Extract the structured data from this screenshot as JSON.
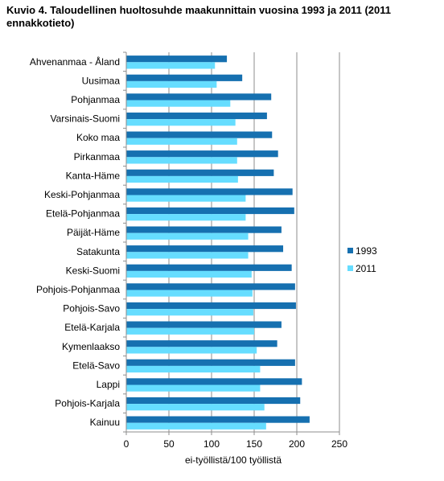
{
  "chart_data": {
    "type": "bar",
    "orientation": "horizontal",
    "title": "Kuvio 4. Taloudellinen huoltosuhde maakunnittain vuosina 1993 ja 2011 (2011 ennakkotieto)",
    "xlabel": "ei-työllistä/100 työllistä",
    "ylabel": "",
    "xlim": [
      0,
      250
    ],
    "xticks": [
      0,
      50,
      100,
      150,
      200,
      250
    ],
    "grid": true,
    "legend_position": "right",
    "categories": [
      "Ahvenanmaa - Åland",
      "Uusimaa",
      "Pohjanmaa",
      "Varsinais-Suomi",
      "Koko maa",
      "Pirkanmaa",
      "Kanta-Häme",
      "Keski-Pohjanmaa",
      "Etelä-Pohjanmaa",
      "Päijät-Häme",
      "Satakunta",
      "Keski-Suomi",
      "Pohjois-Pohjanmaa",
      "Pohjois-Savo",
      "Etelä-Karjala",
      "Kymenlaakso",
      "Etelä-Savo",
      "Lappi",
      "Pohjois-Karjala",
      "Kainuu"
    ],
    "series": [
      {
        "name": "1993",
        "color": "#1670b0",
        "values": [
          118,
          136,
          170,
          165,
          171,
          178,
          173,
          195,
          197,
          182,
          184,
          194,
          198,
          199,
          182,
          177,
          198,
          206,
          204,
          215
        ]
      },
      {
        "name": "2011",
        "color": "#66ddff",
        "values": [
          104,
          106,
          122,
          128,
          130,
          130,
          131,
          140,
          140,
          143,
          143,
          147,
          148,
          149,
          150,
          153,
          157,
          157,
          162,
          164
        ]
      }
    ]
  }
}
